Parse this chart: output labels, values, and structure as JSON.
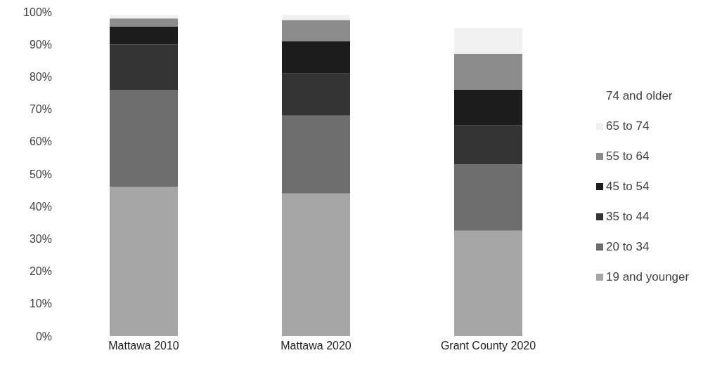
{
  "chart_data": {
    "type": "bar",
    "stacked": true,
    "categories": [
      "Mattawa 2010",
      "Mattawa 2020",
      "Grant County 2020"
    ],
    "series": [
      {
        "name": "19 and younger",
        "color": "#a6a6a6",
        "values": [
          46,
          44,
          32.5
        ]
      },
      {
        "name": "20 to 34",
        "color": "#6e6e6e",
        "values": [
          30,
          24,
          20.5
        ]
      },
      {
        "name": "35 to 44",
        "color": "#333333",
        "values": [
          14,
          13,
          12
        ]
      },
      {
        "name": "45 to 54",
        "color": "#1c1c1c",
        "values": [
          5.5,
          10,
          11
        ]
      },
      {
        "name": "55 to 64",
        "color": "#8c8c8c",
        "values": [
          2.5,
          6.5,
          11
        ]
      },
      {
        "name": "65 to 74",
        "color": "#f0f0f0",
        "values": [
          1,
          1.5,
          8
        ]
      },
      {
        "name": "74 and older",
        "values": [
          null,
          null,
          null
        ]
      }
    ],
    "ylim": [
      0,
      100
    ],
    "yticks": [
      {
        "value": 0,
        "label": "0%"
      },
      {
        "value": 10,
        "label": "10%"
      },
      {
        "value": 20,
        "label": "20%"
      },
      {
        "value": 30,
        "label": "30%"
      },
      {
        "value": 40,
        "label": "40%"
      },
      {
        "value": 50,
        "label": "50%"
      },
      {
        "value": 60,
        "label": "60%"
      },
      {
        "value": 70,
        "label": "70%"
      },
      {
        "value": 80,
        "label": "80%"
      },
      {
        "value": 90,
        "label": "90%"
      },
      {
        "value": 100,
        "label": "100%"
      }
    ],
    "grid": false,
    "legend": "right"
  }
}
